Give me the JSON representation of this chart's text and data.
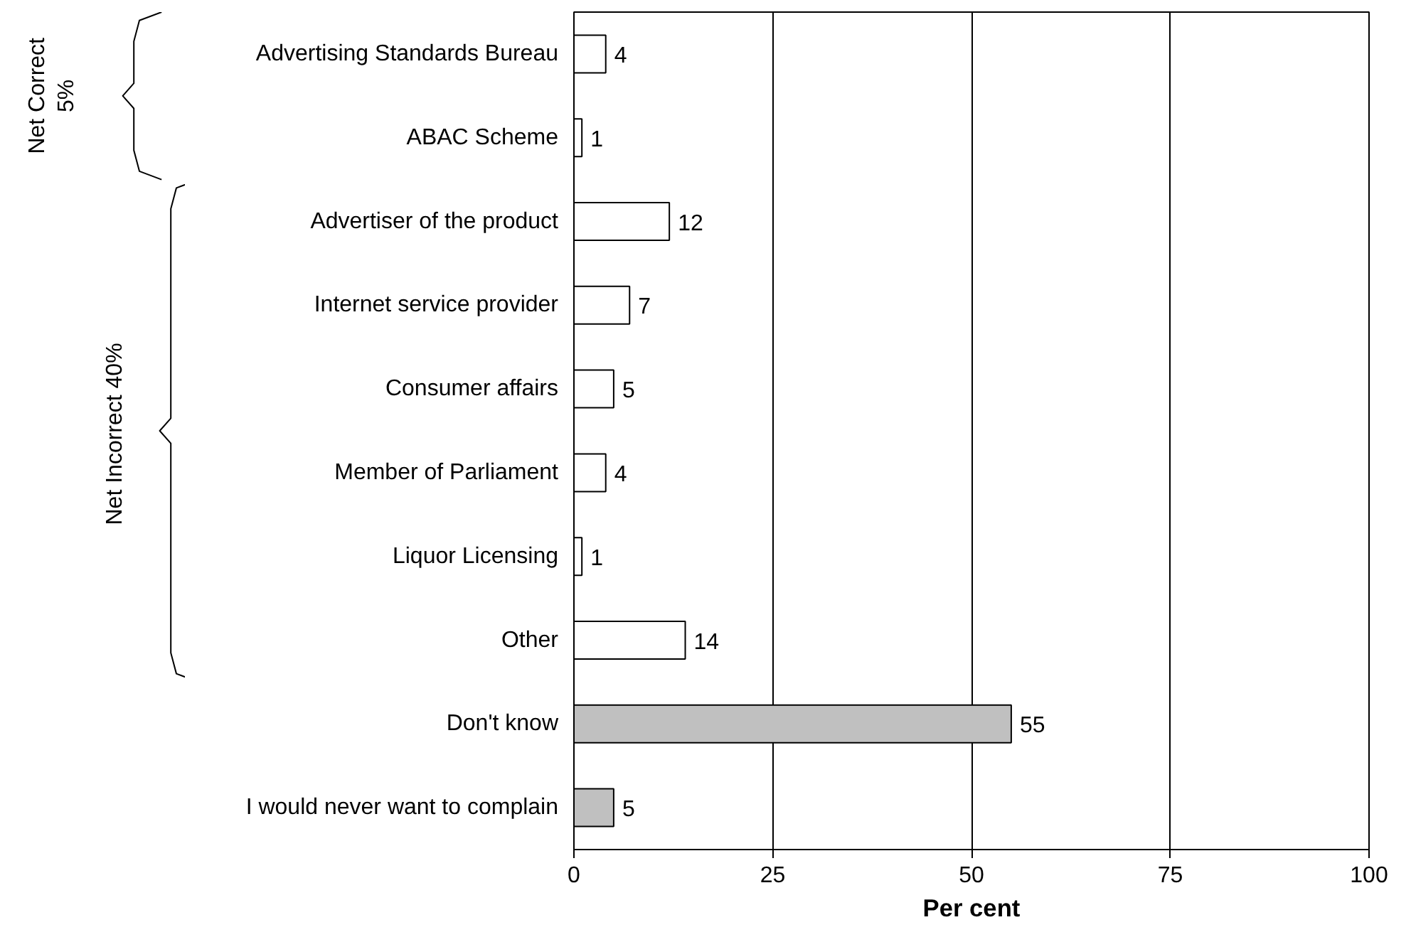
{
  "chart_data": {
    "type": "bar",
    "orientation": "horizontal",
    "xlabel": "Per cent",
    "categories": [
      "Advertising Standards Bureau",
      "ABAC Scheme",
      "Advertiser of the product",
      "Internet service provider",
      "Consumer affairs",
      "Member of Parliament",
      "Liquor Licensing",
      "Other",
      "Don't know",
      "I would never want to complain"
    ],
    "values": [
      4,
      1,
      12,
      7,
      5,
      4,
      1,
      14,
      55,
      5
    ],
    "colors": [
      "#ffffff",
      "#ffffff",
      "#ffffff",
      "#ffffff",
      "#ffffff",
      "#ffffff",
      "#ffffff",
      "#ffffff",
      "#c0c0c0",
      "#c0c0c0"
    ],
    "xlim": [
      0,
      100
    ],
    "xticks": [
      0,
      25,
      50,
      75,
      100
    ],
    "grid": "x",
    "data_labels": true,
    "annotations": [
      "Net Correct\n5%",
      "Net Incorrect  40%"
    ]
  }
}
